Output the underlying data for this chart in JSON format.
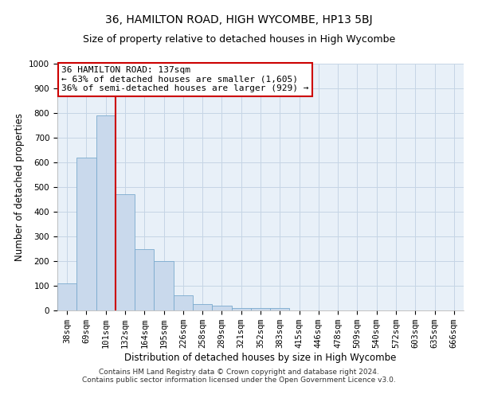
{
  "title": "36, HAMILTON ROAD, HIGH WYCOMBE, HP13 5BJ",
  "subtitle": "Size of property relative to detached houses in High Wycombe",
  "xlabel": "Distribution of detached houses by size in High Wycombe",
  "ylabel": "Number of detached properties",
  "categories": [
    "38sqm",
    "69sqm",
    "101sqm",
    "132sqm",
    "164sqm",
    "195sqm",
    "226sqm",
    "258sqm",
    "289sqm",
    "321sqm",
    "352sqm",
    "383sqm",
    "415sqm",
    "446sqm",
    "478sqm",
    "509sqm",
    "540sqm",
    "572sqm",
    "603sqm",
    "635sqm",
    "666sqm"
  ],
  "values": [
    110,
    620,
    790,
    470,
    250,
    200,
    60,
    25,
    18,
    10,
    10,
    10,
    0,
    0,
    0,
    0,
    0,
    0,
    0,
    0,
    0
  ],
  "bar_color": "#c9d9ec",
  "bar_edge_color": "#7aaace",
  "vline_color": "#cc0000",
  "vline_index": 2.5,
  "ylim": [
    0,
    1000
  ],
  "yticks": [
    0,
    100,
    200,
    300,
    400,
    500,
    600,
    700,
    800,
    900,
    1000
  ],
  "annotation_box_text": "36 HAMILTON ROAD: 137sqm\n← 63% of detached houses are smaller (1,605)\n36% of semi-detached houses are larger (929) →",
  "footer_line1": "Contains HM Land Registry data © Crown copyright and database right 2024.",
  "footer_line2": "Contains public sector information licensed under the Open Government Licence v3.0.",
  "background_color": "#ffffff",
  "plot_bg_color": "#e8f0f8",
  "grid_color": "#c5d5e5",
  "title_fontsize": 10,
  "subtitle_fontsize": 9,
  "axis_label_fontsize": 8.5,
  "tick_fontsize": 7.5,
  "annotation_fontsize": 8,
  "footer_fontsize": 6.5
}
